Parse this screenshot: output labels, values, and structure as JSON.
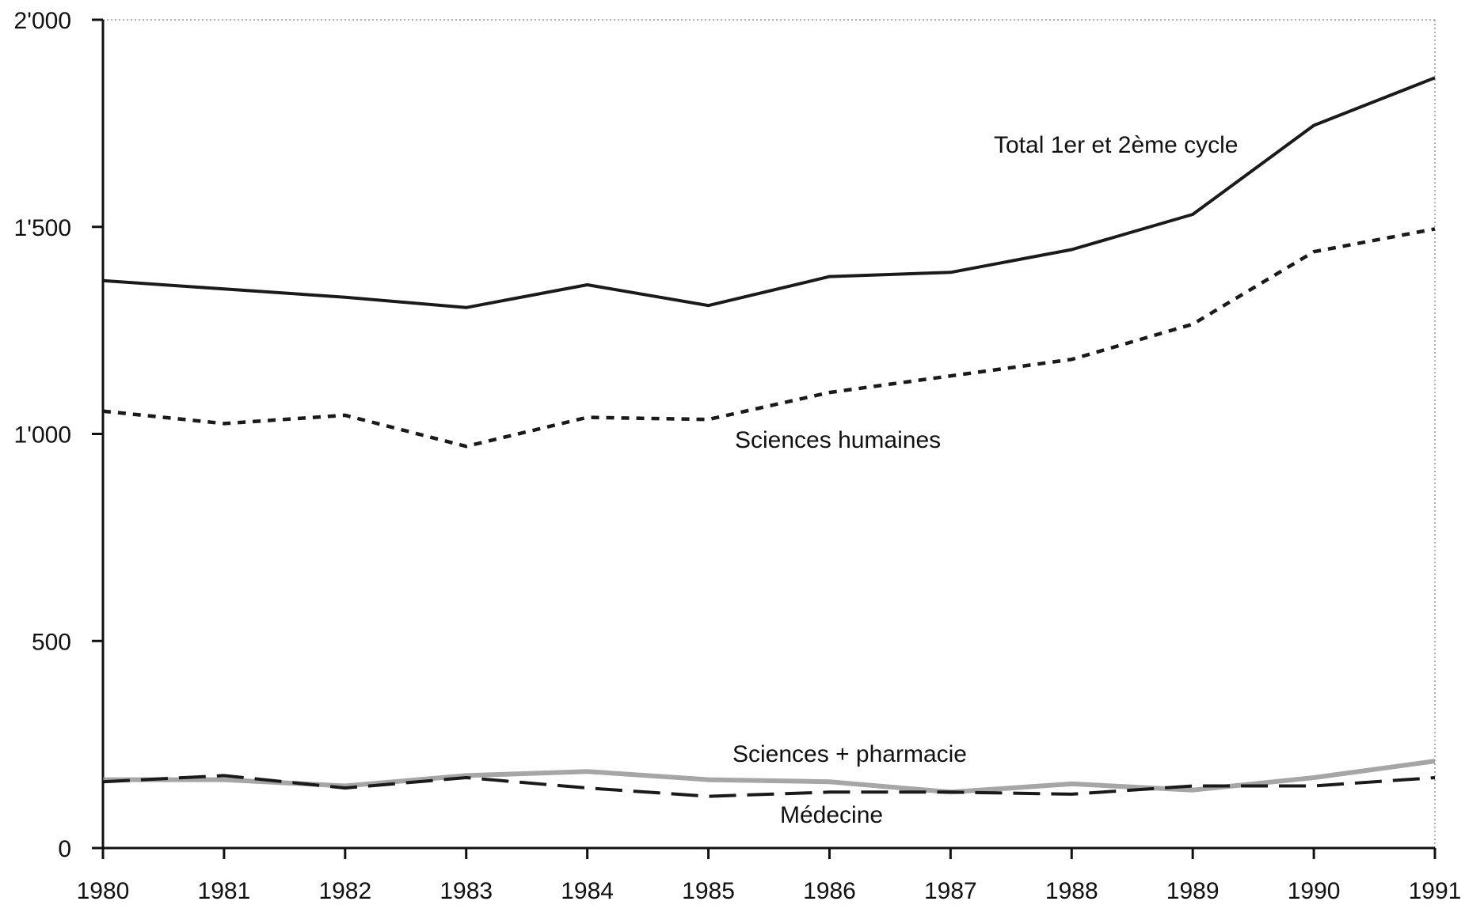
{
  "chart_data": {
    "type": "line",
    "title": "",
    "xlabel": "",
    "ylabel": "",
    "x": [
      1980,
      1981,
      1982,
      1983,
      1984,
      1985,
      1986,
      1987,
      1988,
      1989,
      1990,
      1991
    ],
    "x_tick_labels": [
      "1980",
      "1981",
      "1982",
      "1983",
      "1984",
      "1985",
      "1986",
      "1987",
      "1988",
      "1989",
      "1990",
      "1991"
    ],
    "y_tick_labels": [
      "0",
      "500",
      "1'000",
      "1'500",
      "2'000"
    ],
    "y_ticks": [
      0,
      500,
      1000,
      1500,
      2000
    ],
    "xlim": [
      1980,
      1991
    ],
    "ylim": [
      0,
      2000
    ],
    "grid": false,
    "legend": "inline labels",
    "series": [
      {
        "name": "Total 1er et 2ème cycle",
        "style": "solid",
        "color": "#1a1a1a",
        "values": [
          1370,
          1350,
          1330,
          1305,
          1360,
          1310,
          1380,
          1390,
          1445,
          1530,
          1745,
          1860
        ]
      },
      {
        "name": "Sciences humaines",
        "style": "dotted",
        "color": "#1a1a1a",
        "values": [
          1055,
          1025,
          1045,
          970,
          1040,
          1035,
          1100,
          1140,
          1180,
          1265,
          1440,
          1495
        ]
      },
      {
        "name": "Sciences + pharmacie",
        "style": "solid-gray",
        "color": "#888888",
        "values": [
          165,
          165,
          150,
          175,
          185,
          165,
          160,
          135,
          155,
          140,
          170,
          210
        ]
      },
      {
        "name": "Médecine",
        "style": "dashed",
        "color": "#1a1a1a",
        "values": [
          160,
          175,
          145,
          170,
          145,
          125,
          135,
          135,
          130,
          150,
          150,
          170
        ]
      }
    ]
  }
}
